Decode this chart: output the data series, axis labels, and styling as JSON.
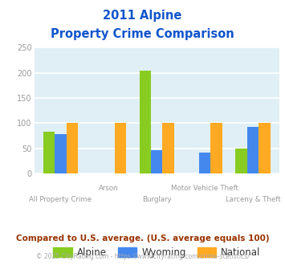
{
  "title_line1": "2011 Alpine",
  "title_line2": "Property Crime Comparison",
  "categories": [
    "All Property Crime",
    "Arson",
    "Burglary",
    "Motor Vehicle Theft",
    "Larceny & Theft"
  ],
  "series": {
    "Alpine": [
      83,
      0,
      205,
      0,
      50
    ],
    "Wyoming": [
      78,
      0,
      47,
      41,
      93
    ],
    "National": [
      100,
      100,
      100,
      100,
      100
    ]
  },
  "colors": {
    "Alpine": "#88cc22",
    "Wyoming": "#4488ee",
    "National": "#ffaa22"
  },
  "ylim": [
    0,
    250
  ],
  "yticks": [
    0,
    50,
    100,
    150,
    200,
    250
  ],
  "bg_color": "#e0eff5",
  "grid_color": "#ffffff",
  "title_color": "#1155cc",
  "axis_label_color": "#999999",
  "footer_text1": "Compared to U.S. average. (U.S. average equals 100)",
  "footer_text2": "© 2025 CityRating.com - https://www.cityrating.com/crime-statistics/",
  "footer_color1": "#993300",
  "footer_color2": "#aaaaaa"
}
